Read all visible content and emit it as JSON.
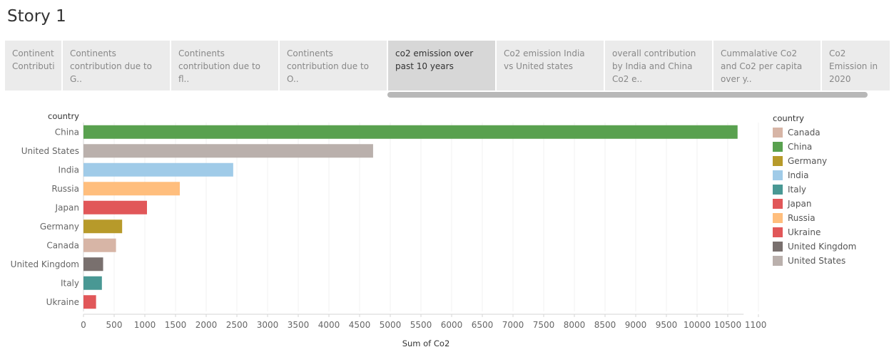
{
  "story": {
    "title": "Story 1"
  },
  "tabs": [
    {
      "label": "Continents Contributi..",
      "active": false
    },
    {
      "label": "Continents contribution due to G..",
      "active": false
    },
    {
      "label": "Continents contribution due to fl..",
      "active": false
    },
    {
      "label": "Continents contribution due to O..",
      "active": false
    },
    {
      "label": "co2 emission over past 10 years",
      "active": true
    },
    {
      "label": "Co2 emission  India vs United states",
      "active": false
    },
    {
      "label": "overall contribution by India and China Co2 e..",
      "active": false
    },
    {
      "label": "Cummalative Co2 and Co2 per capita over y..",
      "active": false
    },
    {
      "label": "Co2 Emission in 2020",
      "active": false
    }
  ],
  "chart_data": {
    "type": "bar",
    "orientation": "horizontal",
    "row_header": "country",
    "xlabel": "Sum of Co2",
    "categories": [
      "China",
      "United States",
      "India",
      "Russia",
      "Japan",
      "Germany",
      "Canada",
      "United Kingdom",
      "Italy",
      "Ukraine"
    ],
    "values": [
      10660,
      4720,
      2440,
      1570,
      1035,
      630,
      530,
      320,
      300,
      205
    ],
    "colors": {
      "Canada": "#d7b5a6",
      "China": "#59a14f",
      "Germany": "#b79a2a",
      "India": "#a0cbe8",
      "Italy": "#499894",
      "Japan": "#e15759",
      "Russia": "#ffbe7d",
      "Ukraine": "#e15759",
      "United Kingdom": "#79706e",
      "United States": "#bab0ac"
    },
    "xlim": [
      0,
      11200
    ],
    "xticks": [
      0,
      500,
      1000,
      1500,
      2000,
      2500,
      3000,
      3500,
      4000,
      4500,
      5000,
      5500,
      6000,
      6500,
      7000,
      7500,
      8000,
      8500,
      9000,
      9500,
      10000,
      10500,
      11000
    ],
    "grid": "vertical",
    "legend": {
      "title": "country",
      "position": "right",
      "items": [
        "Canada",
        "China",
        "Germany",
        "India",
        "Italy",
        "Japan",
        "Russia",
        "Ukraine",
        "United Kingdom",
        "United States"
      ]
    }
  }
}
